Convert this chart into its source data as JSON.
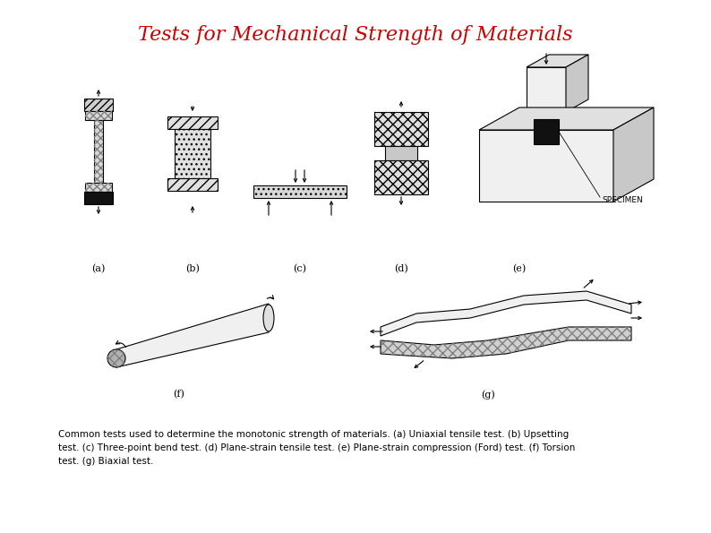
{
  "title": "Tests for Mechanical Strength of Materials",
  "title_color": "#cc0000",
  "title_fontsize": 16,
  "caption": "Common tests used to determine the monotonic strength of materials. (a) Uniaxial tensile test. (b) Upsetting\ntest. (c) Three-point bend test. (d) Plane-strain tensile test. (e) Plane-strain compression (Ford) test. (f) Torsion\ntest. (g) Biaxial test.",
  "caption_fontsize": 7.5,
  "bg_color": "#ffffff",
  "fig_width": 7.94,
  "fig_height": 5.95
}
